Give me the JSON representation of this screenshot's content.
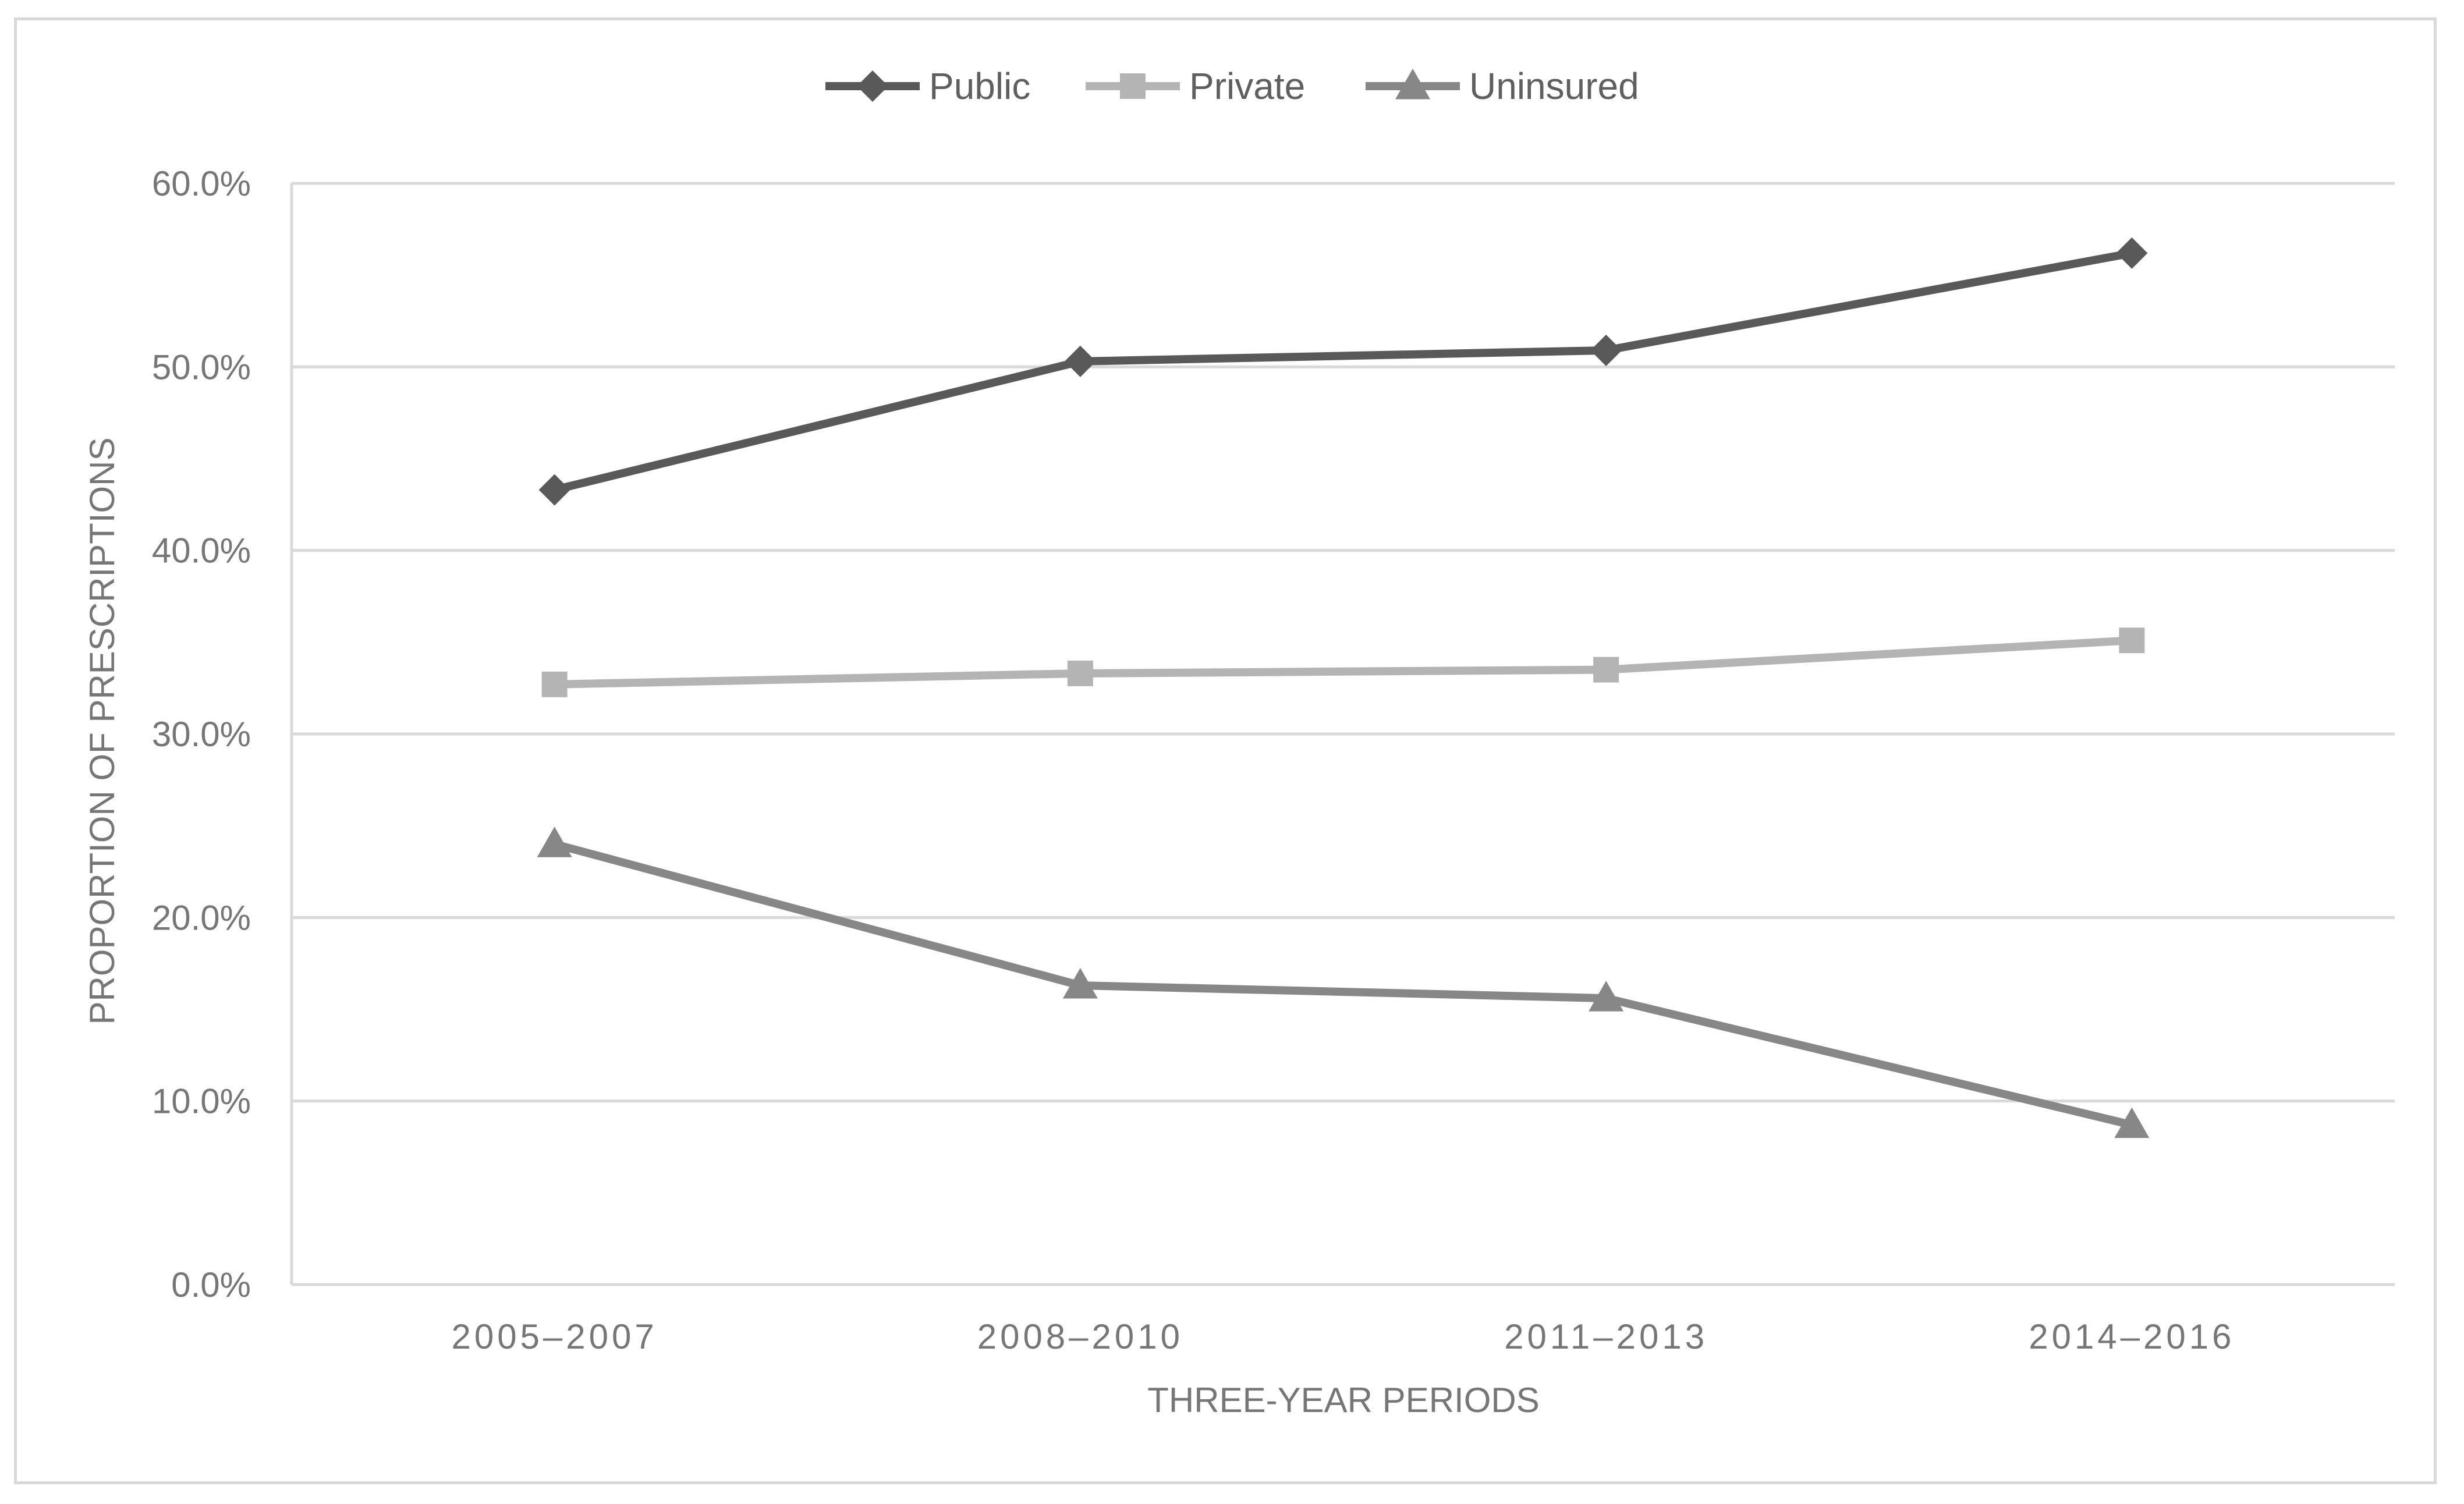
{
  "chart_data": {
    "type": "line",
    "categories": [
      "2005–2007",
      "2008–2010",
      "2011–2013",
      "2014–2016"
    ],
    "series": [
      {
        "name": "Public",
        "values": [
          43.3,
          50.3,
          50.9,
          56.2
        ],
        "color": "#595959",
        "marker": "diamond"
      },
      {
        "name": "Private",
        "values": [
          32.7,
          33.3,
          33.5,
          35.1
        ],
        "color": "#b4b4b4",
        "marker": "square"
      },
      {
        "name": "Uninsured",
        "values": [
          24.0,
          16.3,
          15.6,
          8.7
        ],
        "color": "#878787",
        "marker": "triangle"
      }
    ],
    "xlabel": "THREE-YEAR PERIODS",
    "ylabel": "PROPORTION OF PRESCRIPTIONS",
    "ylim": [
      0,
      60
    ],
    "yticks": [
      "0.0%",
      "10.0%",
      "20.0%",
      "30.0%",
      "40.0%",
      "50.0%",
      "60.0%"
    ],
    "grid": true,
    "legend_position": "top-center"
  }
}
